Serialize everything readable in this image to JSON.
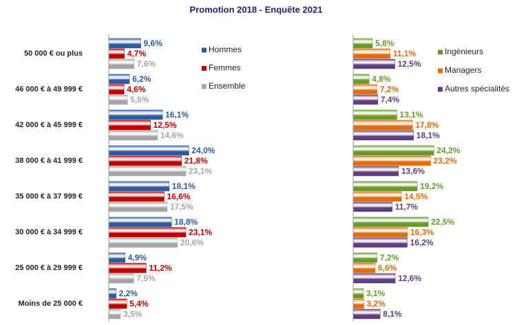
{
  "chart_data": [
    {
      "type": "bar",
      "orientation": "horizontal",
      "title": "Promotion 2018 - Enquête 2021",
      "categories": [
        "50 000 € ou plus",
        "46 000 € à 49 999 €",
        "42 000 € à 45 999 €",
        "38 000 € à 41 999 €",
        "35 000 € à 37 999 €",
        "30 000 € à 34 999 €",
        "25 000 € à 29 999 €",
        "Moins de 25 000 €"
      ],
      "series": [
        {
          "name": "Hommes",
          "color": "#2f5b9e",
          "values": [
            9.6,
            6.2,
            16.1,
            24.0,
            18.1,
            18.8,
            4.9,
            2.2
          ],
          "value_labels": [
            "9,6%",
            "6,2%",
            "16,1%",
            "24,0%",
            "18,1%",
            "18,8%",
            "4,9%",
            "2,2%"
          ]
        },
        {
          "name": "Femmes",
          "color": "#c00000",
          "values": [
            4.7,
            4.6,
            12.5,
            21.8,
            16.6,
            23.1,
            11.2,
            5.4
          ],
          "value_labels": [
            "4,7%",
            "4,6%",
            "12,5%",
            "21,8%",
            "16,6%",
            "23,1%",
            "11,2%",
            "5,4%"
          ]
        },
        {
          "name": "Ensemble",
          "color": "#a6a6a6",
          "values": [
            7.6,
            5.6,
            14.6,
            23.1,
            17.5,
            20.6,
            7.5,
            3.5
          ],
          "value_labels": [
            "7,6%",
            "5,6%",
            "14,6%",
            "23,1%",
            "17,5%",
            "20,6%",
            "7,5%",
            "3,5%"
          ]
        }
      ]
    },
    {
      "type": "bar",
      "orientation": "horizontal",
      "series": [
        {
          "name": "Ingénieurs",
          "color": "#6b9a2c",
          "values": [
            5.8,
            4.8,
            13.1,
            24.2,
            19.2,
            22.5,
            7.2,
            3.1
          ],
          "value_labels": [
            "5,8%",
            "4,8%",
            "13,1%",
            "24,2%",
            "19,2%",
            "22,5%",
            "7,2%",
            "3,1%"
          ]
        },
        {
          "name": "Managers",
          "color": "#e46c0a",
          "values": [
            11.1,
            7.2,
            17.8,
            23.2,
            14.5,
            16.3,
            6.6,
            3.2
          ],
          "value_labels": [
            "11,1%",
            "7,2%",
            "17,8%",
            "23,2%",
            "14,5%",
            "16,3%",
            "6,6%",
            "3,2%"
          ]
        },
        {
          "name": "Autres spécialités",
          "color": "#5f3f80",
          "values": [
            12.5,
            7.4,
            18.1,
            13.6,
            11.7,
            16.2,
            12.6,
            8.1
          ],
          "value_labels": [
            "12,5%",
            "7,4%",
            "18,1%",
            "13,6%",
            "11,7%",
            "16,2%",
            "12,6%",
            "8,1%"
          ]
        }
      ]
    }
  ]
}
